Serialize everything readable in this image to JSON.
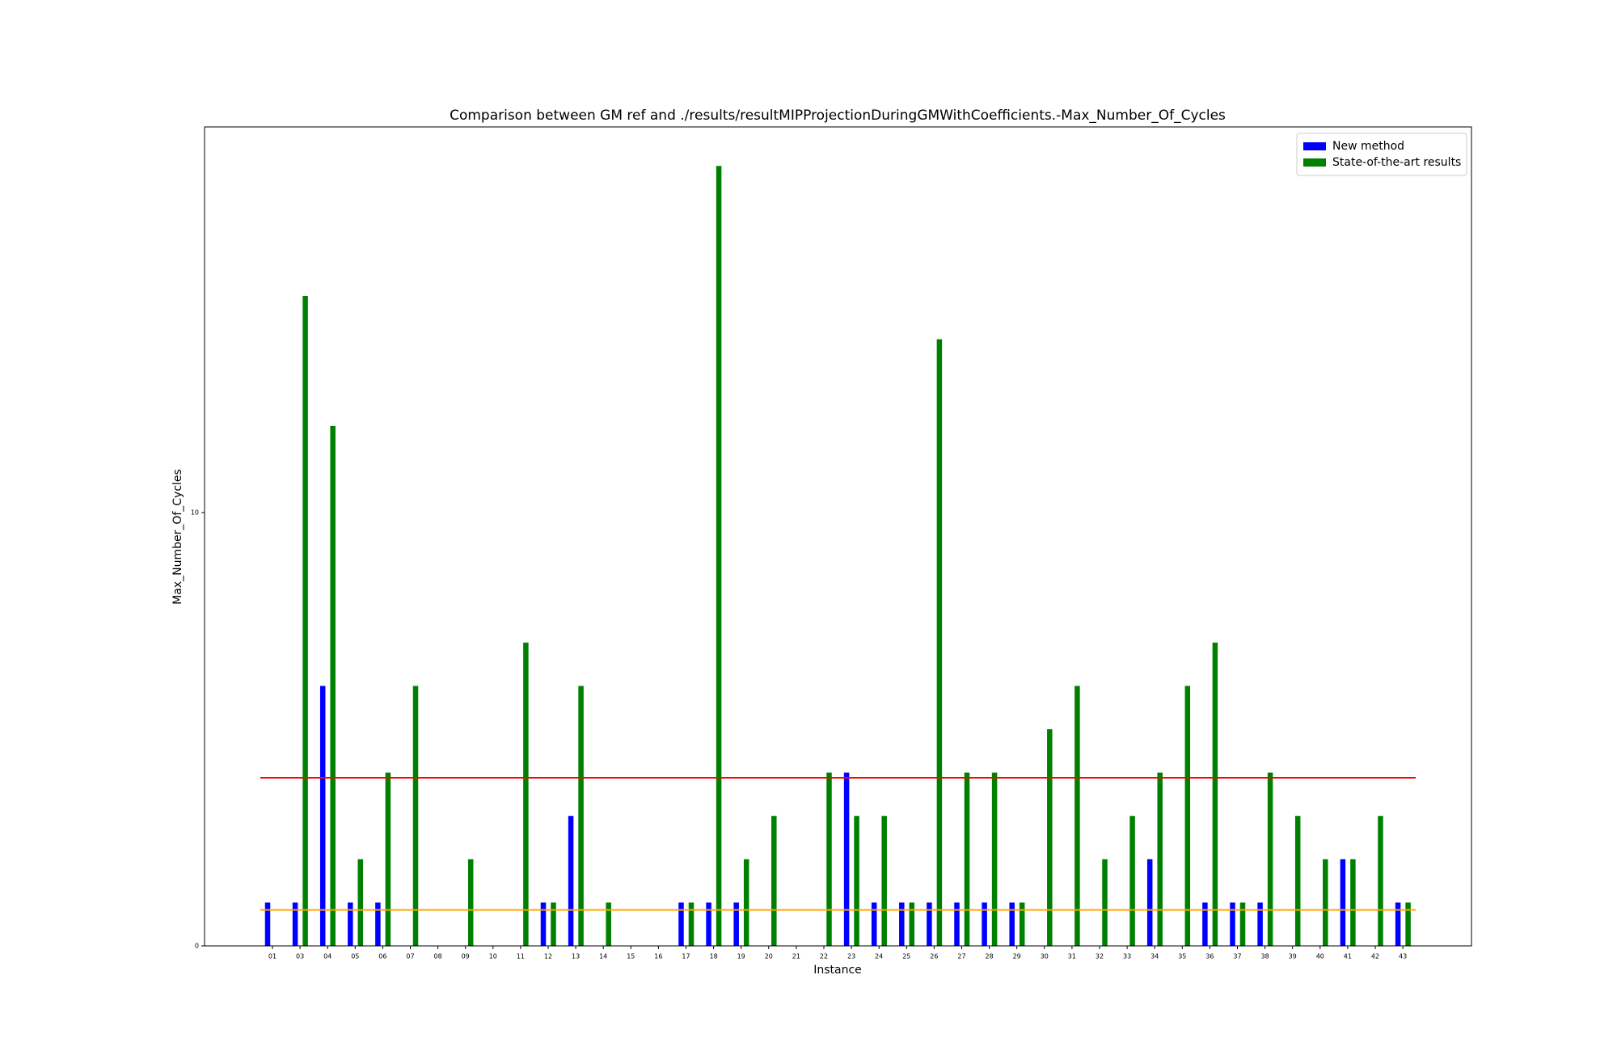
{
  "chart_data": {
    "type": "bar",
    "title": "Comparison between GM ref and ./results/resultMIPProjectionDuringGMWithCoefficients.-Max_Number_Of_Cycles",
    "x_label": "Instance",
    "y_label": "Max_Number_Of_Cycles",
    "categories": [
      "01",
      "03",
      "04",
      "05",
      "06",
      "07",
      "08",
      "09",
      "10",
      "11",
      "12",
      "13",
      "14",
      "15",
      "16",
      "17",
      "18",
      "19",
      "20",
      "21",
      "22",
      "23",
      "24",
      "25",
      "26",
      "27",
      "28",
      "29",
      "30",
      "31",
      "32",
      "33",
      "34",
      "35",
      "36",
      "37",
      "38",
      "39",
      "40",
      "41",
      "42",
      "43"
    ],
    "series": [
      {
        "name": "New method",
        "color": "#0000ff",
        "values": [
          1,
          1,
          6,
          1,
          1,
          0,
          0,
          0,
          0,
          0,
          1,
          3,
          0,
          0,
          0,
          1,
          1,
          1,
          0,
          0,
          0,
          4,
          1,
          1,
          1,
          1,
          1,
          1,
          0,
          0,
          0,
          0,
          2,
          0,
          1,
          1,
          1,
          0,
          0,
          2,
          0,
          1
        ]
      },
      {
        "name": "State-of-the-art results",
        "color": "#008000",
        "values": [
          0,
          15,
          12,
          2,
          4,
          6,
          0,
          2,
          0,
          7,
          1,
          6,
          1,
          0,
          0,
          1,
          18,
          2,
          3,
          0,
          4,
          3,
          3,
          1,
          14,
          4,
          4,
          1,
          5,
          6,
          2,
          3,
          4,
          6,
          7,
          1,
          4,
          3,
          2,
          2,
          3,
          1
        ]
      }
    ],
    "reference_lines": [
      {
        "value": 3.88,
        "color": "#ff0000"
      },
      {
        "value": 0.83,
        "color": "#ffa500"
      }
    ],
    "ylim": [
      0,
      18.9
    ],
    "yticks": [
      0,
      10
    ],
    "legend": "upper right"
  }
}
